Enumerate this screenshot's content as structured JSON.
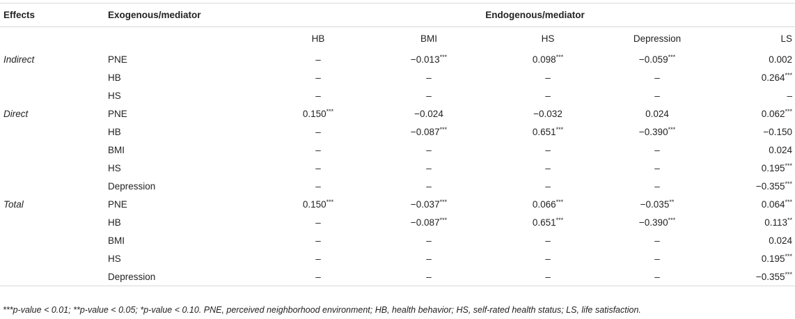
{
  "header": {
    "effects": "Effects",
    "exogenous": "Exogenous/mediator",
    "endogenous": "Endogenous/mediator",
    "columns": [
      "HB",
      "BMI",
      "HS",
      "Depression",
      "LS"
    ]
  },
  "rows": [
    {
      "effect": "Indirect",
      "var": "PNE",
      "cells": [
        {
          "v": "–",
          "s": ""
        },
        {
          "v": "−0.013",
          "s": "***"
        },
        {
          "v": "0.098",
          "s": "***"
        },
        {
          "v": "−0.059",
          "s": "***"
        },
        {
          "v": "0.002",
          "s": ""
        }
      ]
    },
    {
      "effect": "",
      "var": "HB",
      "cells": [
        {
          "v": "–",
          "s": ""
        },
        {
          "v": "–",
          "s": ""
        },
        {
          "v": "–",
          "s": ""
        },
        {
          "v": "–",
          "s": ""
        },
        {
          "v": "0.264",
          "s": "***"
        }
      ]
    },
    {
      "effect": "",
      "var": "HS",
      "cells": [
        {
          "v": "–",
          "s": ""
        },
        {
          "v": "–",
          "s": ""
        },
        {
          "v": "–",
          "s": ""
        },
        {
          "v": "–",
          "s": ""
        },
        {
          "v": "–",
          "s": ""
        }
      ]
    },
    {
      "effect": "Direct",
      "var": "PNE",
      "cells": [
        {
          "v": "0.150",
          "s": "***"
        },
        {
          "v": "−0.024",
          "s": ""
        },
        {
          "v": "−0.032",
          "s": ""
        },
        {
          "v": "0.024",
          "s": ""
        },
        {
          "v": "0.062",
          "s": "***"
        }
      ]
    },
    {
      "effect": "",
      "var": "HB",
      "cells": [
        {
          "v": "–",
          "s": ""
        },
        {
          "v": "−0.087",
          "s": "***"
        },
        {
          "v": "0.651",
          "s": "***"
        },
        {
          "v": "−0.390",
          "s": "***"
        },
        {
          "v": "−0.150",
          "s": ""
        }
      ]
    },
    {
      "effect": "",
      "var": "BMI",
      "cells": [
        {
          "v": "–",
          "s": ""
        },
        {
          "v": "–",
          "s": ""
        },
        {
          "v": "–",
          "s": ""
        },
        {
          "v": "–",
          "s": ""
        },
        {
          "v": "0.024",
          "s": ""
        }
      ]
    },
    {
      "effect": "",
      "var": "HS",
      "cells": [
        {
          "v": "–",
          "s": ""
        },
        {
          "v": "–",
          "s": ""
        },
        {
          "v": "–",
          "s": ""
        },
        {
          "v": "–",
          "s": ""
        },
        {
          "v": "0.195",
          "s": "***"
        }
      ]
    },
    {
      "effect": "",
      "var": "Depression",
      "cells": [
        {
          "v": "–",
          "s": ""
        },
        {
          "v": "–",
          "s": ""
        },
        {
          "v": "–",
          "s": ""
        },
        {
          "v": "–",
          "s": ""
        },
        {
          "v": "−0.355",
          "s": "***"
        }
      ]
    },
    {
      "effect": "Total",
      "var": "PNE",
      "cells": [
        {
          "v": "0.150",
          "s": "***"
        },
        {
          "v": "−0.037",
          "s": "***"
        },
        {
          "v": "0.066",
          "s": "***"
        },
        {
          "v": "−0.035",
          "s": "**"
        },
        {
          "v": "0.064",
          "s": "***"
        }
      ]
    },
    {
      "effect": "",
      "var": "HB",
      "cells": [
        {
          "v": "–",
          "s": ""
        },
        {
          "v": "−0.087",
          "s": "***"
        },
        {
          "v": "0.651",
          "s": "***"
        },
        {
          "v": "−0.390",
          "s": "***"
        },
        {
          "v": "0.113",
          "s": "**"
        }
      ]
    },
    {
      "effect": "",
      "var": "BMI",
      "cells": [
        {
          "v": "–",
          "s": ""
        },
        {
          "v": "–",
          "s": ""
        },
        {
          "v": "–",
          "s": ""
        },
        {
          "v": "–",
          "s": ""
        },
        {
          "v": "0.024",
          "s": ""
        }
      ]
    },
    {
      "effect": "",
      "var": "HS",
      "cells": [
        {
          "v": "–",
          "s": ""
        },
        {
          "v": "–",
          "s": ""
        },
        {
          "v": "–",
          "s": ""
        },
        {
          "v": "–",
          "s": ""
        },
        {
          "v": "0.195",
          "s": "***"
        }
      ]
    },
    {
      "effect": "",
      "var": "Depression",
      "cells": [
        {
          "v": "–",
          "s": ""
        },
        {
          "v": "–",
          "s": ""
        },
        {
          "v": "–",
          "s": ""
        },
        {
          "v": "–",
          "s": ""
        },
        {
          "v": "−0.355",
          "s": "***"
        }
      ]
    }
  ],
  "footnote": "***p-value < 0.01; **p-value < 0.05; *p-value < 0.10. PNE, perceived neighborhood environment; HB, health behavior; HS, self-rated health status; LS, life satisfaction."
}
